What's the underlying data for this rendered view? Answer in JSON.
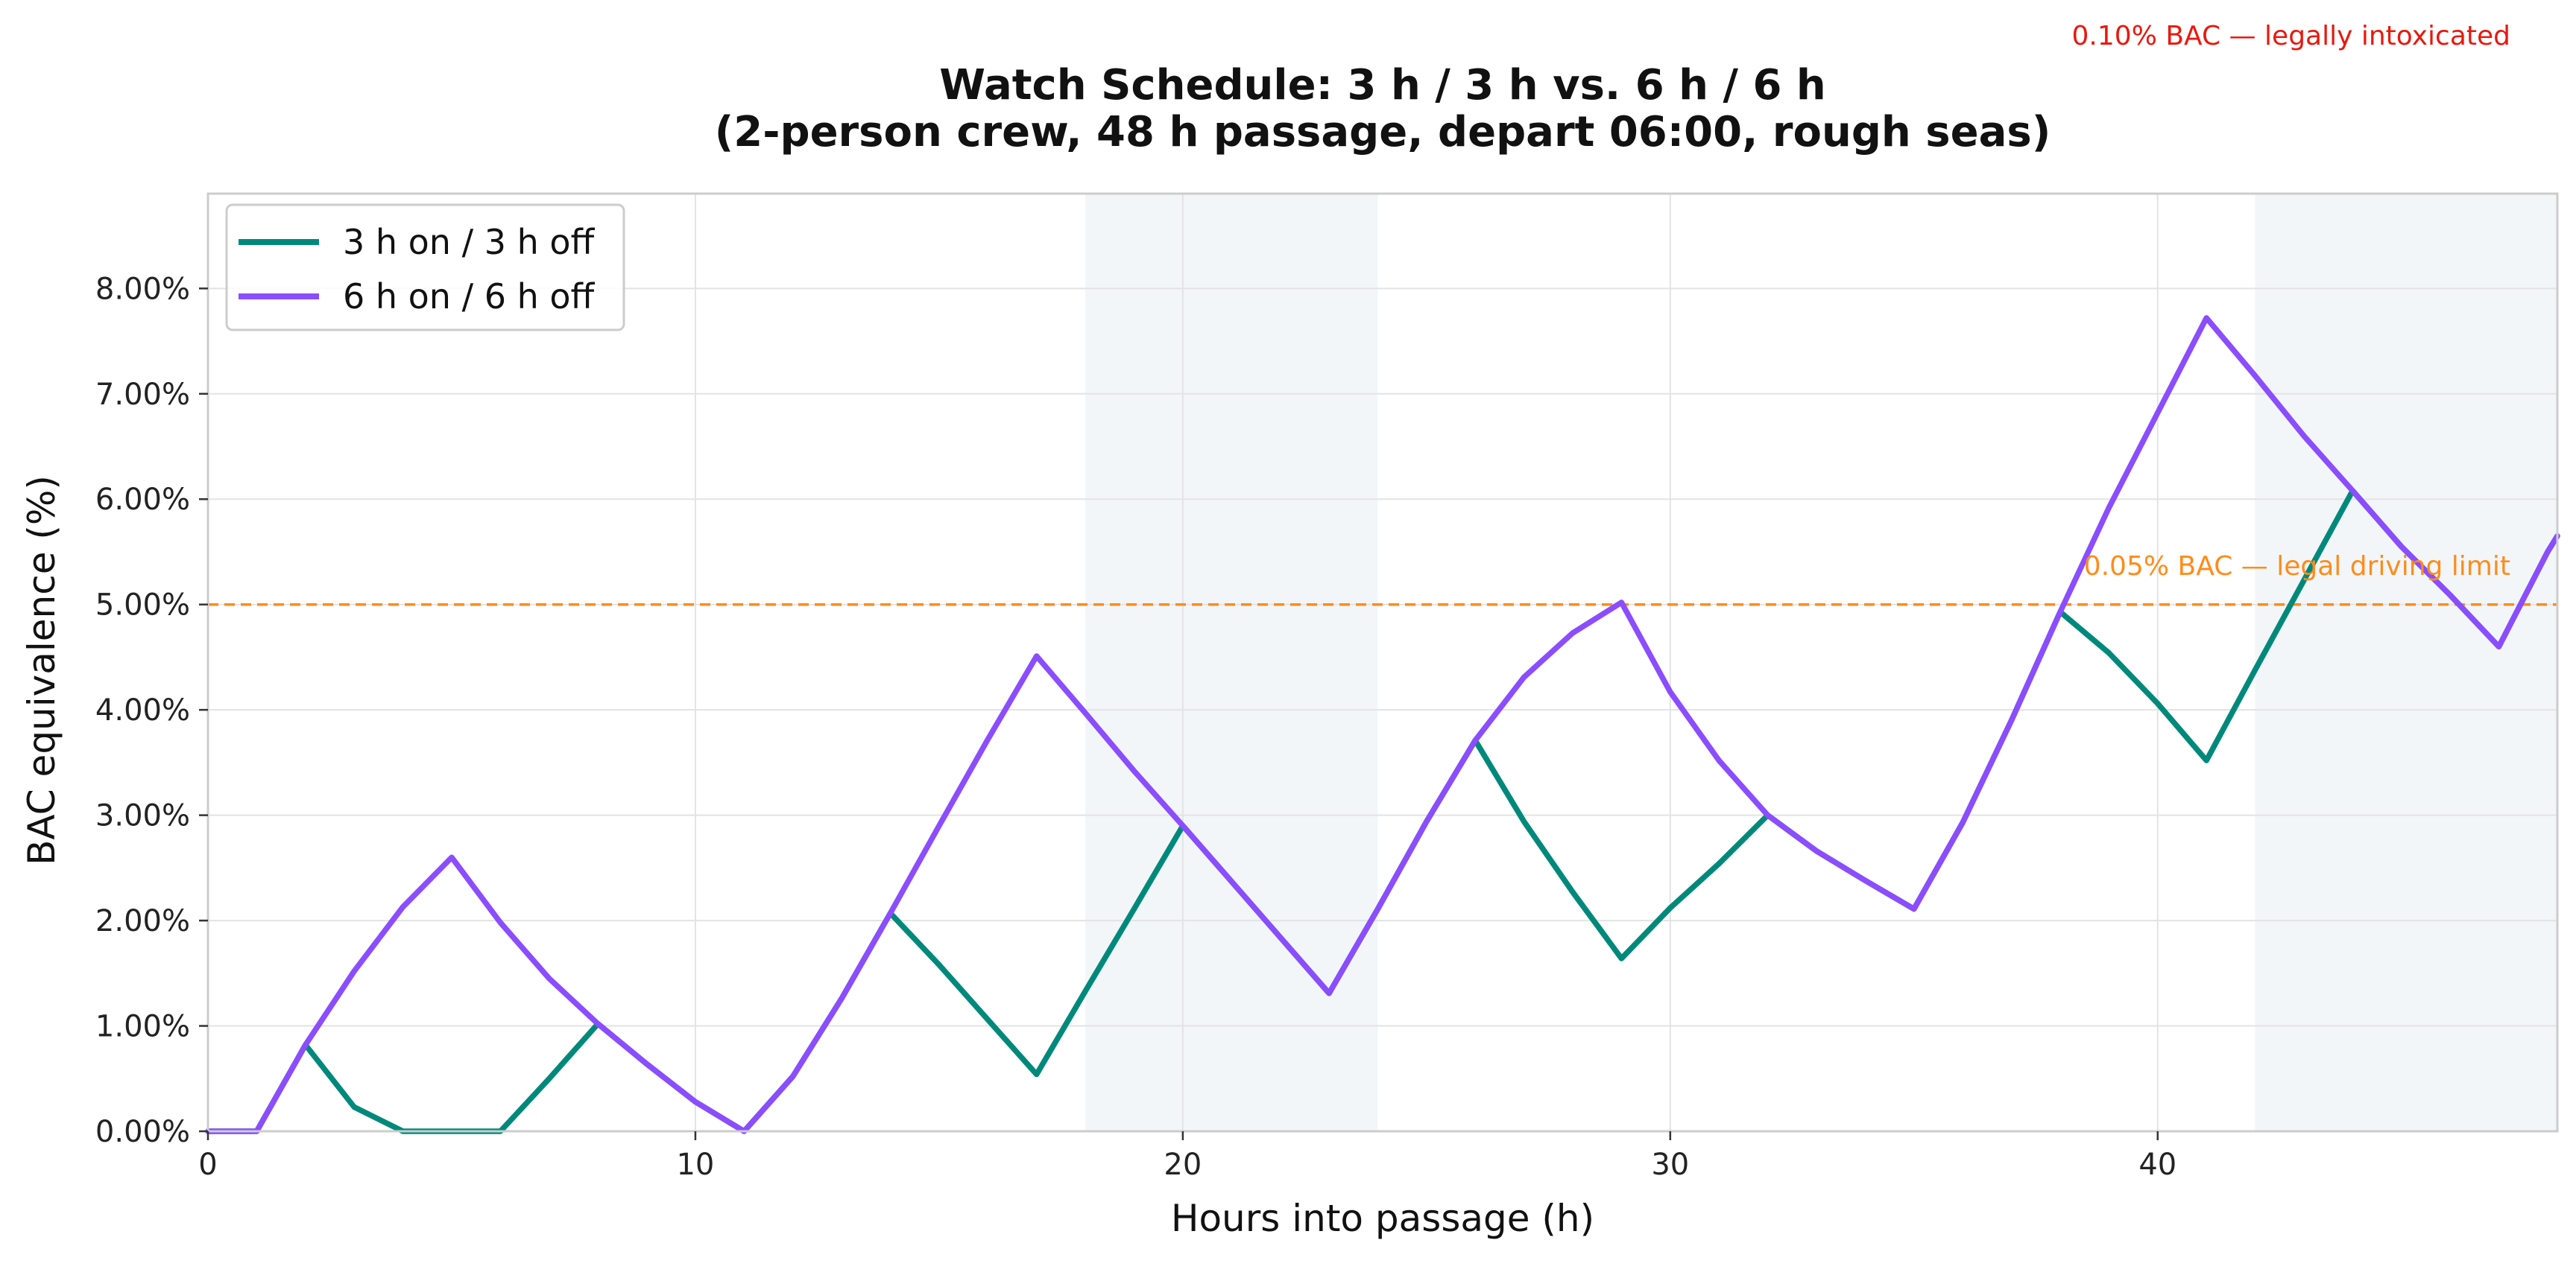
{
  "chart_data": {
    "type": "line",
    "title": "Watch Schedule: 3 h / 3 h vs. 6 h / 6 h",
    "subtitle": "(2-person crew, 48 h passage, depart 06:00, rough seas)",
    "xlabel": "Hours into passage (h)",
    "ylabel": "BAC equivalence (%)",
    "xlim": [
      0,
      48.2
    ],
    "ylim": [
      0,
      8.9
    ],
    "x_ticks": [
      0,
      10,
      20,
      30,
      40
    ],
    "y_ticks": [
      0,
      1,
      2,
      3,
      4,
      5,
      6,
      7,
      8
    ],
    "y_tick_format": "%.2f%",
    "grid": true,
    "legend_position": "upper left",
    "night_bands": [
      [
        18,
        24
      ],
      [
        42,
        48.2
      ]
    ],
    "series": [
      {
        "name": "3 h on / 3 h off",
        "color": "#00897b",
        "x": [
          0,
          1,
          2,
          3,
          4,
          5,
          6,
          7,
          8,
          9,
          10,
          11,
          12,
          13,
          14,
          15,
          16,
          17,
          18,
          19,
          20,
          21,
          22,
          23,
          24,
          25,
          26,
          27,
          28,
          29,
          30,
          31,
          32,
          33,
          34,
          35,
          36,
          37,
          38,
          39,
          40,
          41,
          42,
          43,
          44,
          45,
          46,
          47,
          48,
          48.2
        ],
        "values": [
          0,
          0,
          0.82,
          0.23,
          0,
          0,
          0,
          0.5,
          1.02,
          0.64,
          0.28,
          0,
          0.52,
          1.26,
          2.07,
          1.58,
          1.06,
          0.54,
          1.33,
          2.11,
          2.9,
          2.37,
          1.84,
          1.31,
          2.11,
          2.94,
          3.71,
          2.94,
          2.27,
          1.64,
          2.12,
          2.54,
          3.0,
          2.66,
          2.38,
          2.11,
          2.93,
          3.9,
          4.93,
          4.54,
          4.06,
          3.52,
          4.38,
          5.23,
          6.08,
          5.55,
          5.09,
          4.6,
          5.5,
          5.65
        ]
      },
      {
        "name": "6 h on / 6 h off",
        "color": "#8b4dff",
        "x": [
          0,
          1,
          2,
          3,
          4,
          5,
          6,
          7,
          8,
          9,
          10,
          11,
          12,
          13,
          14,
          15,
          16,
          17,
          18,
          19,
          20,
          21,
          22,
          23,
          24,
          25,
          26,
          27,
          28,
          29,
          30,
          31,
          32,
          33,
          34,
          35,
          36,
          37,
          38,
          39,
          40,
          41,
          42,
          43,
          44,
          45,
          46,
          47,
          48,
          48.2
        ],
        "values": [
          0,
          0,
          0.82,
          1.52,
          2.13,
          2.6,
          1.98,
          1.45,
          1.02,
          0.64,
          0.28,
          0,
          0.52,
          1.26,
          2.07,
          2.9,
          3.72,
          4.51,
          3.97,
          3.42,
          2.9,
          2.37,
          1.84,
          1.31,
          2.11,
          2.94,
          3.71,
          4.31,
          4.73,
          5.02,
          4.17,
          3.52,
          3.0,
          2.66,
          2.38,
          2.11,
          2.93,
          3.9,
          4.93,
          5.92,
          6.82,
          7.72,
          7.17,
          6.6,
          6.08,
          5.55,
          5.09,
          4.6,
          5.5,
          5.65
        ]
      }
    ],
    "reference_lines": [
      {
        "y": 5.0,
        "label": "0.05% BAC — legal driving limit",
        "color": "#ff8c1a",
        "style": "dashed"
      },
      {
        "y": 10.0,
        "label": "0.10% BAC — legally intoxicated",
        "color": "#e8190f",
        "style": "dashed"
      }
    ]
  }
}
